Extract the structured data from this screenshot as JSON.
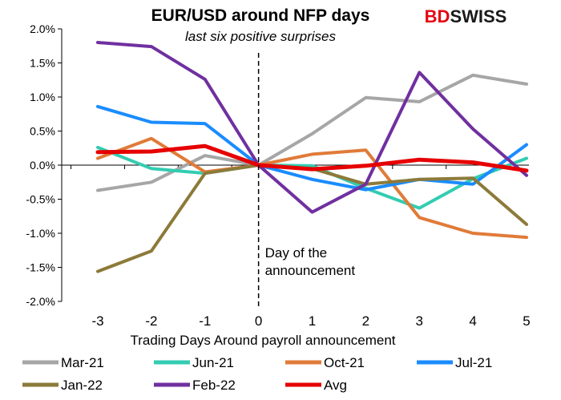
{
  "brand": {
    "prefix": "BD",
    "suffix": "SWISS",
    "prefix_color": "#e30613",
    "suffix_color": "#1a1a1a"
  },
  "chart_data": {
    "type": "line",
    "title": "EUR/USD around NFP days",
    "subtitle": "last six positive surprises",
    "xlabel": "Trading Days Around payroll announcement",
    "ylabel": "",
    "x": [
      -3,
      -2,
      -1,
      0,
      1,
      2,
      3,
      4,
      5
    ],
    "x_tick_labels": [
      "-3",
      "-2",
      "-1",
      "0",
      "1",
      "2",
      "3",
      "4",
      "5"
    ],
    "ylim": [
      -2.0,
      2.0
    ],
    "y_ticks": [
      -2.0,
      -1.5,
      -1.0,
      -0.5,
      0.0,
      0.5,
      1.0,
      1.5,
      2.0
    ],
    "y_tick_labels": [
      "-2.0%",
      "-1.5%",
      "-1.0%",
      "-0.5%",
      "0.0%",
      "0.5%",
      "1.0%",
      "1.5%",
      "2.0%"
    ],
    "grid": false,
    "legend_position": "bottom",
    "annotation": {
      "x": 0,
      "lines": [
        "Day of the",
        "announcement"
      ]
    },
    "series": [
      {
        "name": "Mar-21",
        "color": "#a6a6a6",
        "values": [
          -0.37,
          -0.25,
          0.14,
          0.0,
          0.46,
          0.99,
          0.93,
          1.32,
          1.19
        ]
      },
      {
        "name": "Jun-21",
        "color": "#33ccb2",
        "values": [
          0.26,
          -0.05,
          -0.12,
          0.0,
          -0.01,
          -0.34,
          -0.63,
          -0.2,
          0.1
        ]
      },
      {
        "name": "Oct-21",
        "color": "#e07b39",
        "values": [
          0.1,
          0.39,
          -0.1,
          0.0,
          0.16,
          0.22,
          -0.77,
          -1.0,
          -1.06
        ]
      },
      {
        "name": "Jul-21",
        "color": "#1a8cff",
        "values": [
          0.86,
          0.63,
          0.61,
          0.0,
          -0.21,
          -0.36,
          -0.21,
          -0.28,
          0.3
        ]
      },
      {
        "name": "Jan-22",
        "color": "#8c7a3a",
        "values": [
          -1.56,
          -1.26,
          -0.12,
          0.0,
          -0.05,
          -0.28,
          -0.21,
          -0.19,
          -0.87
        ]
      },
      {
        "name": "Feb-22",
        "color": "#7030a0",
        "values": [
          1.8,
          1.74,
          1.26,
          0.0,
          -0.69,
          -0.28,
          1.36,
          0.53,
          -0.15
        ]
      },
      {
        "name": "Avg",
        "color": "#e60000",
        "values": [
          0.19,
          0.2,
          0.28,
          0.0,
          -0.06,
          -0.01,
          0.08,
          0.04,
          -0.08
        ]
      }
    ]
  }
}
